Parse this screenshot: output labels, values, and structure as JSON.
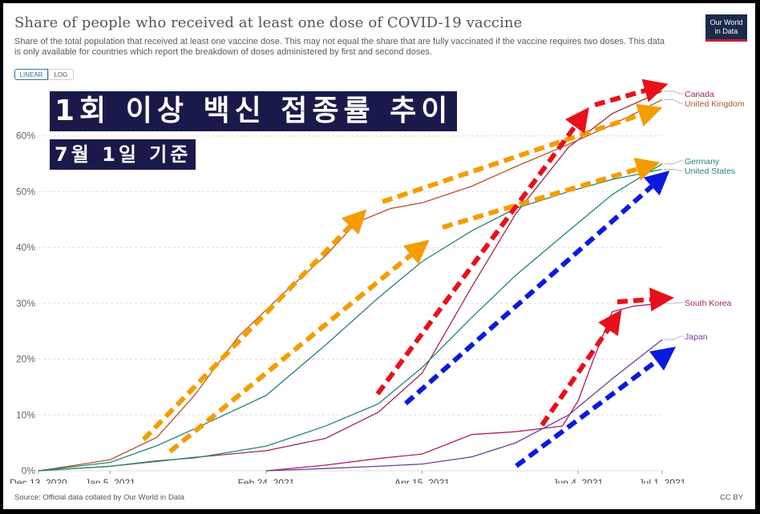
{
  "header": {
    "title": "Share of people who received at least one dose of COVID-19 vaccine",
    "subtitle": "Share of the total population that received at least one vaccine dose. This may not equal the share that are fully vaccinated if the vaccine requires two doses. This data is only available for countries which report the breakdown of doses administered by first and second doses.",
    "logo_line1": "Our World",
    "logo_line2": "in Data"
  },
  "controls": {
    "linear_label": "LINEAR",
    "log_label": "LOG",
    "selected": "LINEAR"
  },
  "overlay": {
    "title": "1회 이상 백신 접종률 추이",
    "subtitle": "7월 1일 기준"
  },
  "footer": {
    "source": "Source: Official data collated by Our World in Data",
    "license": "CC BY"
  },
  "colors": {
    "Canada": "#a12a3f",
    "United Kingdom": "#b5532a",
    "Germany": "#1a8a6e",
    "United States": "#2a7f7f",
    "South Korea": "#b01c6c",
    "Japan": "#6a3f95",
    "orange_arrow": "#f59c00",
    "red_arrow": "#e8101a",
    "blue_arrow": "#0a1adf",
    "grid": "#dddddd",
    "axis_text": "#666666"
  },
  "chart_data": {
    "type": "line",
    "x_axis": {
      "type": "date",
      "range": [
        "2020-12-13",
        "2021-07-01"
      ],
      "ticks": [
        "2020-12-13",
        "2021-01-05",
        "2021-02-24",
        "2021-04-15",
        "2021-06-04",
        "2021-07-01"
      ],
      "tick_labels": [
        "Dec 13, 2020",
        "Jan 5, 2021",
        "Feb 24, 2021",
        "Apr 15, 2021",
        "Jun 4, 2021",
        "Jul 1, 2021"
      ]
    },
    "y_axis": {
      "range": [
        0,
        70
      ],
      "ticks": [
        0,
        10,
        20,
        30,
        40,
        50,
        60
      ],
      "tick_labels": [
        "0%",
        "10%",
        "20%",
        "30%",
        "40%",
        "50%",
        "60%"
      ]
    },
    "grid": true,
    "legend": "right-end labels",
    "series": [
      {
        "name": "Canada",
        "points": [
          [
            "2020-12-13",
            0
          ],
          [
            "2021-01-05",
            0.8
          ],
          [
            "2021-02-01",
            2.4
          ],
          [
            "2021-02-24",
            3.6
          ],
          [
            "2021-03-15",
            5.8
          ],
          [
            "2021-04-01",
            10.5
          ],
          [
            "2021-04-15",
            17.5
          ],
          [
            "2021-05-01",
            33.0
          ],
          [
            "2021-05-15",
            46.0
          ],
          [
            "2021-06-01",
            58.0
          ],
          [
            "2021-06-15",
            64.0
          ],
          [
            "2021-07-01",
            68.0
          ]
        ]
      },
      {
        "name": "United Kingdom",
        "points": [
          [
            "2020-12-13",
            0
          ],
          [
            "2020-12-25",
            1.0
          ],
          [
            "2021-01-05",
            2.0
          ],
          [
            "2021-01-20",
            6.0
          ],
          [
            "2021-02-01",
            13.5
          ],
          [
            "2021-02-15",
            24.0
          ],
          [
            "2021-03-01",
            31.5
          ],
          [
            "2021-03-15",
            38.5
          ],
          [
            "2021-03-25",
            44.5
          ],
          [
            "2021-04-05",
            47.0
          ],
          [
            "2021-04-15",
            48.0
          ],
          [
            "2021-05-01",
            51.0
          ],
          [
            "2021-05-15",
            54.5
          ],
          [
            "2021-06-01",
            58.5
          ],
          [
            "2021-06-15",
            62.0
          ],
          [
            "2021-07-01",
            66.5
          ]
        ]
      },
      {
        "name": "Germany",
        "points": [
          [
            "2020-12-13",
            0
          ],
          [
            "2021-01-05",
            0.8
          ],
          [
            "2021-01-20",
            1.8
          ],
          [
            "2021-02-01",
            2.3
          ],
          [
            "2021-02-24",
            4.4
          ],
          [
            "2021-03-15",
            8.0
          ],
          [
            "2021-04-01",
            12.0
          ],
          [
            "2021-04-15",
            18.5
          ],
          [
            "2021-05-01",
            27.5
          ],
          [
            "2021-05-15",
            35.0
          ],
          [
            "2021-06-01",
            43.0
          ],
          [
            "2021-06-15",
            49.5
          ],
          [
            "2021-07-01",
            55.0
          ]
        ]
      },
      {
        "name": "United States",
        "points": [
          [
            "2020-12-13",
            0
          ],
          [
            "2021-01-05",
            1.5
          ],
          [
            "2021-01-20",
            4.5
          ],
          [
            "2021-02-01",
            7.5
          ],
          [
            "2021-02-24",
            13.5
          ],
          [
            "2021-03-15",
            22.5
          ],
          [
            "2021-04-01",
            31.0
          ],
          [
            "2021-04-15",
            37.5
          ],
          [
            "2021-05-01",
            43.0
          ],
          [
            "2021-05-15",
            47.0
          ],
          [
            "2021-06-01",
            50.0
          ],
          [
            "2021-06-15",
            52.2
          ],
          [
            "2021-07-01",
            54.0
          ]
        ]
      },
      {
        "name": "South Korea",
        "points": [
          [
            "2021-02-24",
            0
          ],
          [
            "2021-03-15",
            1.0
          ],
          [
            "2021-04-01",
            2.2
          ],
          [
            "2021-04-15",
            3.0
          ],
          [
            "2021-05-01",
            6.5
          ],
          [
            "2021-05-15",
            7.0
          ],
          [
            "2021-05-30",
            8.0
          ],
          [
            "2021-06-04",
            12.5
          ],
          [
            "2021-06-09",
            20.0
          ],
          [
            "2021-06-15",
            28.5
          ],
          [
            "2021-06-22",
            29.5
          ],
          [
            "2021-07-01",
            30.0
          ]
        ]
      },
      {
        "name": "Japan",
        "points": [
          [
            "2021-02-24",
            0
          ],
          [
            "2021-03-15",
            0.4
          ],
          [
            "2021-04-01",
            0.8
          ],
          [
            "2021-04-15",
            1.2
          ],
          [
            "2021-05-01",
            2.5
          ],
          [
            "2021-05-15",
            5.0
          ],
          [
            "2021-06-01",
            10.0
          ],
          [
            "2021-06-15",
            16.5
          ],
          [
            "2021-07-01",
            23.5
          ]
        ]
      }
    ]
  }
}
